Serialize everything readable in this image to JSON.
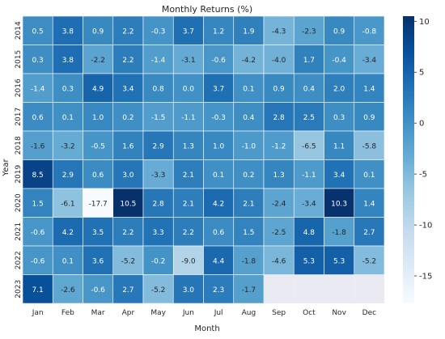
{
  "chart_data": {
    "type": "heatmap",
    "title": "Monthly Returns (%)",
    "xlabel": "Month",
    "ylabel": "Year",
    "x_categories": [
      "Jan",
      "Feb",
      "Mar",
      "Apr",
      "May",
      "Jun",
      "Jul",
      "Aug",
      "Sep",
      "Oct",
      "Nov",
      "Dec"
    ],
    "y_categories": [
      "2014",
      "2015",
      "2016",
      "2017",
      "2018",
      "2019",
      "2020",
      "2021",
      "2022",
      "2023"
    ],
    "values": [
      [
        0.5,
        3.8,
        0.9,
        2.2,
        -0.3,
        3.7,
        1.2,
        1.9,
        -4.3,
        -2.3,
        0.9,
        -0.8
      ],
      [
        0.3,
        3.8,
        -2.2,
        2.2,
        -1.4,
        -3.1,
        -0.6,
        -4.2,
        -4.0,
        1.7,
        -0.4,
        -3.4
      ],
      [
        -1.4,
        0.3,
        4.9,
        3.4,
        0.8,
        -0.0,
        3.7,
        0.1,
        0.9,
        0.4,
        2.0,
        1.4
      ],
      [
        0.6,
        0.1,
        1.0,
        0.2,
        -1.5,
        -1.1,
        -0.3,
        0.4,
        2.8,
        2.5,
        0.3,
        0.9
      ],
      [
        -1.6,
        -3.2,
        -0.5,
        1.6,
        2.9,
        1.3,
        1.0,
        -1.0,
        -1.2,
        -6.5,
        1.1,
        -5.8
      ],
      [
        8.5,
        2.9,
        0.6,
        3.0,
        -3.3,
        2.1,
        0.1,
        0.2,
        1.3,
        -1.1,
        3.4,
        0.1
      ],
      [
        1.5,
        -6.1,
        -17.7,
        10.5,
        2.8,
        2.1,
        4.2,
        2.1,
        -2.4,
        -3.4,
        10.3,
        1.4
      ],
      [
        -0.6,
        4.2,
        3.5,
        2.2,
        3.3,
        2.2,
        0.6,
        1.5,
        -2.5,
        4.8,
        -1.8,
        2.7
      ],
      [
        -0.6,
        0.1,
        3.6,
        -5.2,
        -0.2,
        -9.0,
        4.4,
        -1.8,
        -4.6,
        5.3,
        5.3,
        -5.2
      ],
      [
        7.1,
        -2.6,
        -0.6,
        2.7,
        -5.2,
        3.0,
        2.3,
        -1.7,
        null,
        null,
        null,
        null
      ]
    ],
    "colorscale": "Blues",
    "value_range": [
      -17.7,
      10.5
    ],
    "colorbar_ticks": [
      10,
      5,
      0,
      -5,
      -10,
      -15
    ],
    "missing_color": "#eaeaf2",
    "grid": false,
    "legend": "colorbar-right"
  }
}
